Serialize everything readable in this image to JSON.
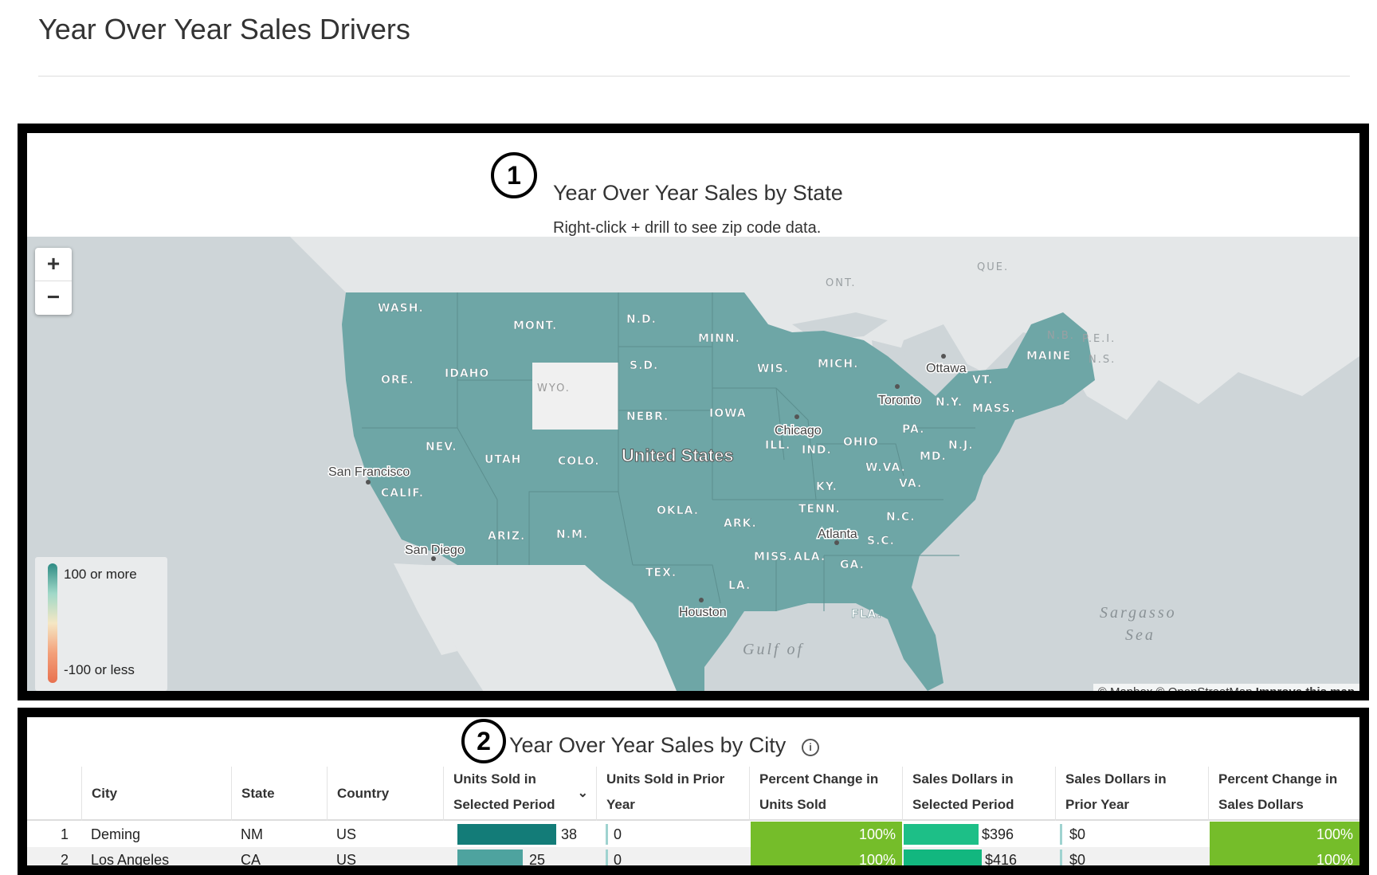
{
  "page": {
    "title": "Year Over Year Sales Drivers"
  },
  "map_panel": {
    "badge": "1",
    "title": "Year Over Year Sales by State",
    "subtitle": "Right-click + drill to see zip code data.",
    "zoom_in": "+",
    "zoom_out": "−",
    "legend": {
      "high": "100 or more",
      "low": "-100 or less"
    },
    "attribution": {
      "mapbox": "© Mapbox",
      "osm": "© OpenStreetMap",
      "improve": "Improve this map"
    },
    "colors": {
      "state_fill": "#6ea6a6",
      "no_data_fill": "#f0f0f0",
      "land": "#e4e7e8",
      "water": "#ced5d8"
    },
    "state_labels": [
      "WASH.",
      "MONT.",
      "N.D.",
      "MINN.",
      "ORE.",
      "IDAHO",
      "WYO.",
      "S.D.",
      "WIS.",
      "MICH.",
      "MAINE",
      "VT.",
      "N.Y.",
      "MASS.",
      "IOWA",
      "NEBR.",
      "NEV.",
      "UTAH",
      "COLO.",
      "ILL.",
      "IND.",
      "OHIO",
      "PA.",
      "N.J.",
      "MD.",
      "W.VA.",
      "VA.",
      "CALIF.",
      "KY.",
      "OKLA.",
      "TENN.",
      "N.C.",
      "ARK.",
      "ARIZ.",
      "N.M.",
      "S.C.",
      "MISS.",
      "ALA.",
      "GA.",
      "TEX.",
      "LA.",
      "FLA."
    ],
    "canada_labels": [
      "QUE.",
      "ONT.",
      "N.B.",
      "P.E.I.",
      "N.S."
    ],
    "city_labels": [
      "Ottawa",
      "Toronto",
      "Chicago",
      "San Francisco",
      "Atlanta",
      "San Diego",
      "Houston"
    ],
    "country_label": "United States",
    "sea_labels": [
      "Sargasso",
      "Sea",
      "Gulf of"
    ]
  },
  "table_panel": {
    "badge": "2",
    "title": "Year Over Year Sales by City",
    "columns": [
      {
        "line1": "City",
        "line2": ""
      },
      {
        "line1": "State",
        "line2": ""
      },
      {
        "line1": "Country",
        "line2": ""
      },
      {
        "line1": "Units Sold in",
        "line2": "Selected Period"
      },
      {
        "line1": "Units Sold in Prior",
        "line2": "Year"
      },
      {
        "line1": "Percent Change in",
        "line2": "Units Sold"
      },
      {
        "line1": "Sales Dollars in",
        "line2": "Selected Period"
      },
      {
        "line1": "Sales Dollars in",
        "line2": "Prior Year"
      },
      {
        "line1": "Percent Change in",
        "line2": "Sales Dollars"
      }
    ],
    "rows": [
      {
        "idx": "1",
        "city": "Deming",
        "state": "NM",
        "country": "US",
        "units_sel": "38",
        "units_sel_frac": 1.0,
        "units_prior": "0",
        "pct_units": "100%",
        "sales_sel": "$396",
        "sales_sel_frac": 0.88,
        "sales_prior": "$0",
        "pct_sales": "100%"
      },
      {
        "idx": "2",
        "city": "Los Angeles",
        "state": "CA",
        "country": "US",
        "units_sel": "25",
        "units_sel_frac": 0.66,
        "units_prior": "0",
        "pct_units": "100%",
        "sales_sel": "$416",
        "sales_sel_frac": 0.92,
        "sales_prior": "$0",
        "pct_sales": "100%"
      }
    ]
  }
}
